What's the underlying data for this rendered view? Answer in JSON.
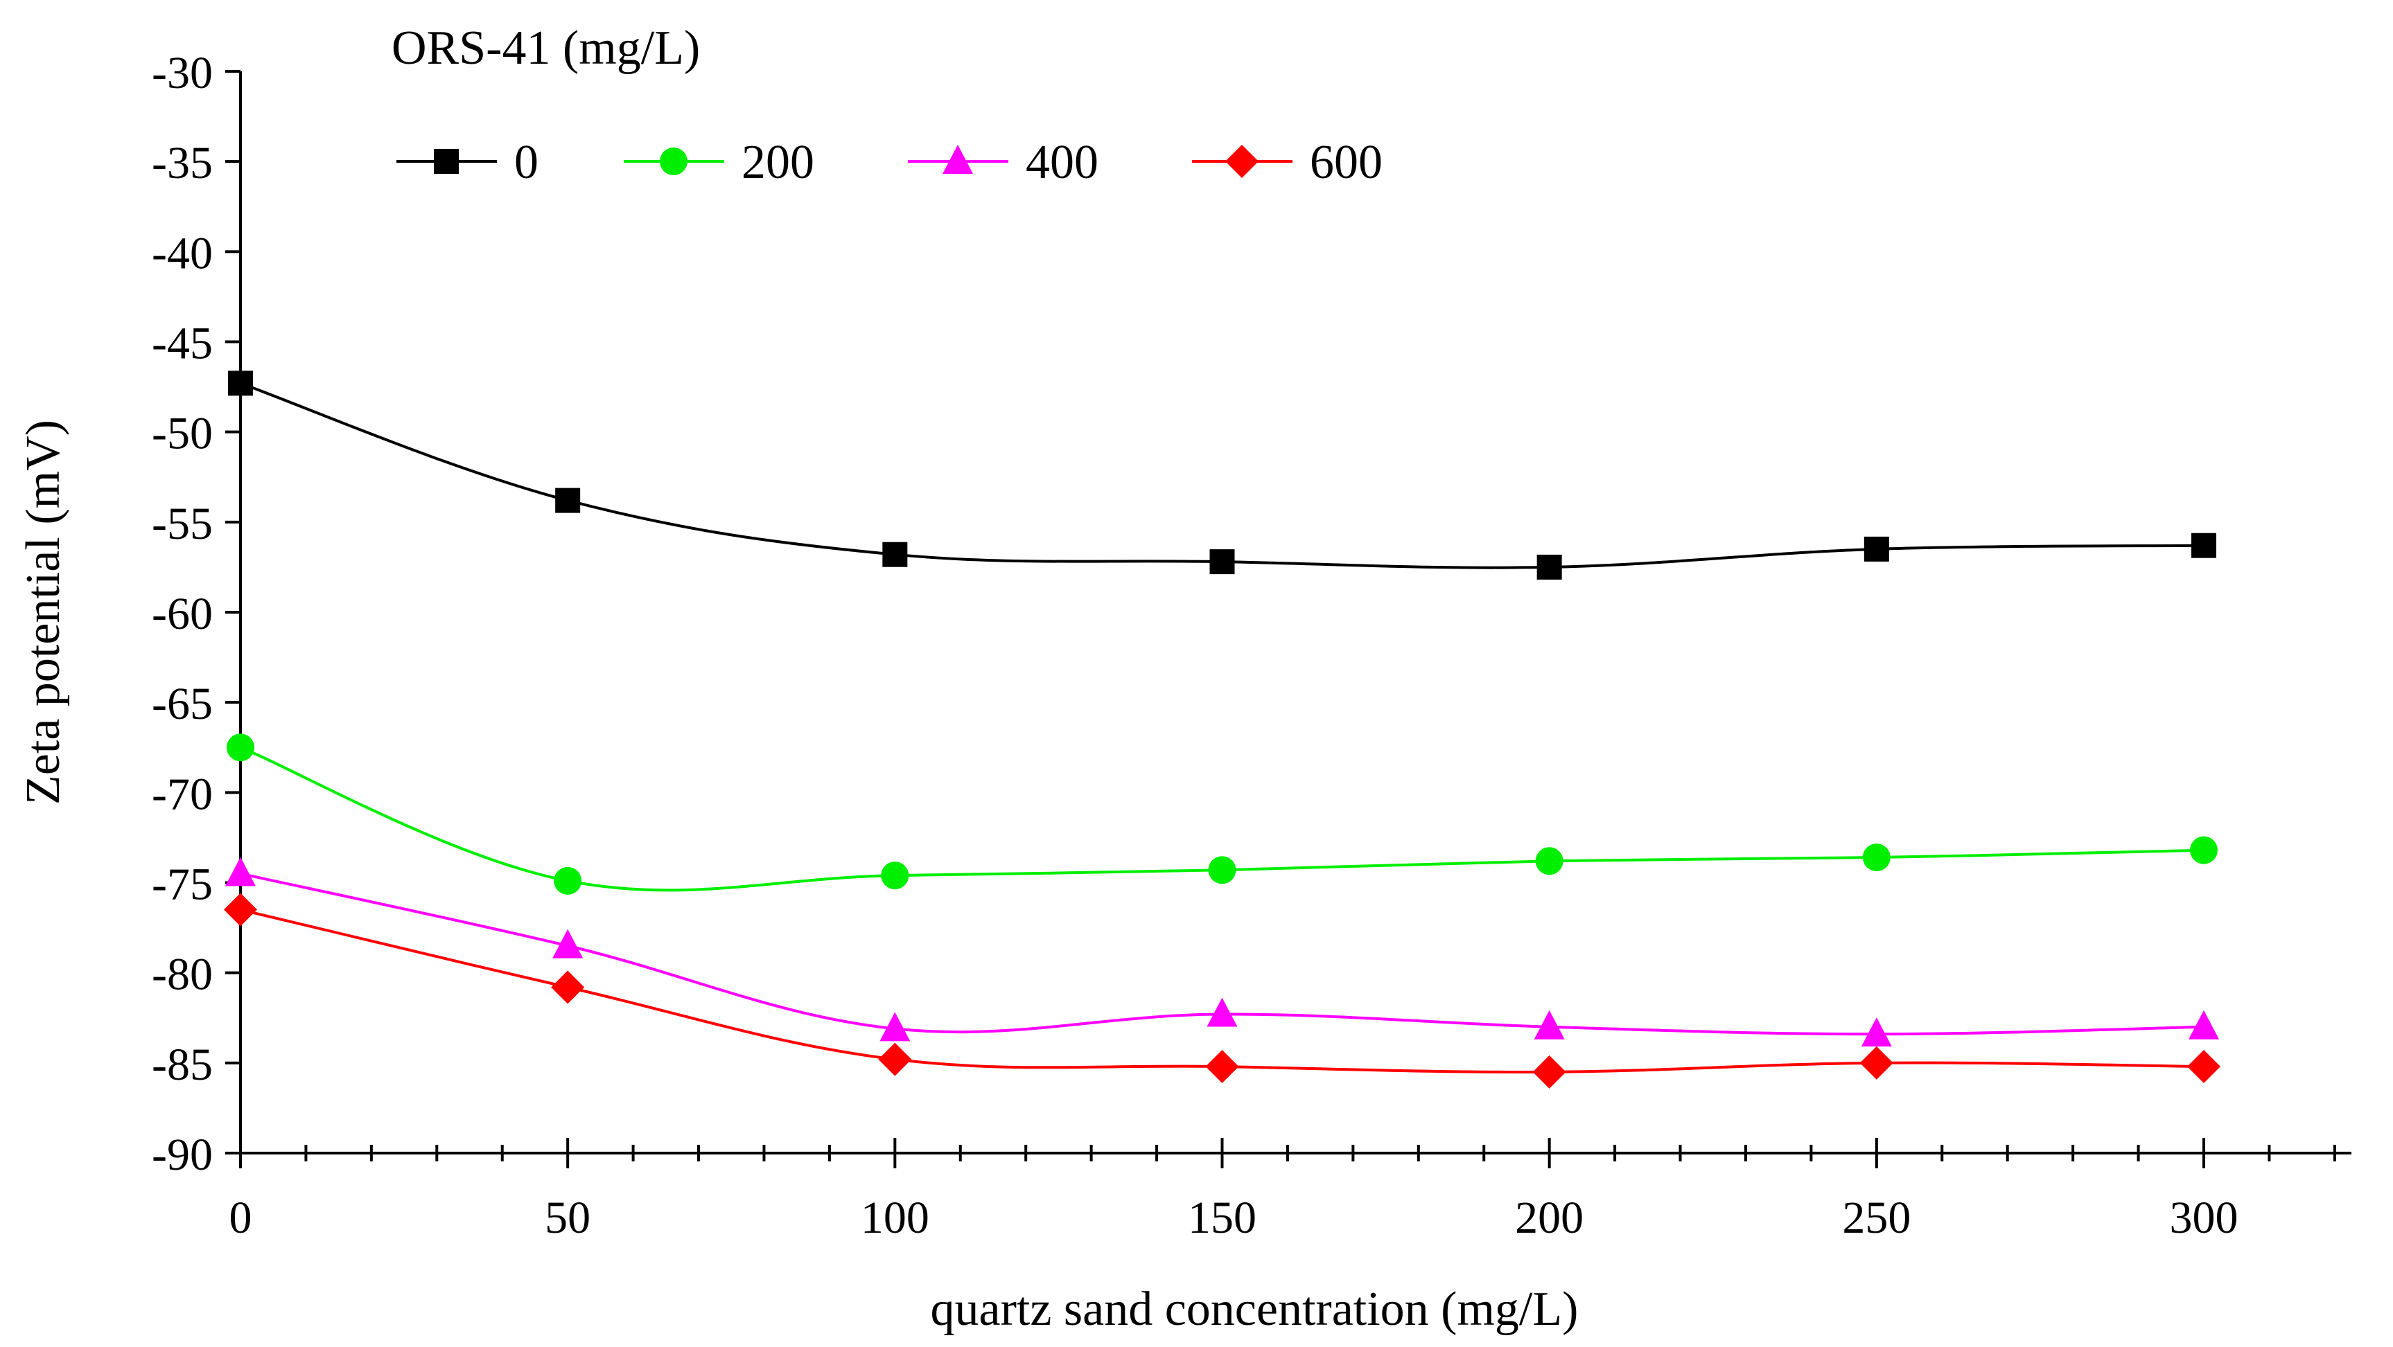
{
  "chart_data": {
    "type": "line",
    "title": "",
    "legend_title": "ORS-41 (mg/L)",
    "legend_position": "top-left",
    "xlabel": "quartz sand concentration (mg/L)",
    "ylabel": "Zeta potential (mV)",
    "x": [
      0,
      50,
      100,
      150,
      200,
      250,
      300
    ],
    "xlim": [
      0,
      320
    ],
    "ylim": [
      -90,
      -30
    ],
    "x_ticks": [
      "0",
      "50",
      "100",
      "150",
      "200",
      "250",
      "300"
    ],
    "y_ticks": [
      "-30",
      "-35",
      "-40",
      "-45",
      "-50",
      "-55",
      "-60",
      "-65",
      "-70",
      "-75",
      "-80",
      "-85",
      "-90"
    ],
    "grid": false,
    "series": [
      {
        "name": "0",
        "color": "#000000",
        "marker": "square",
        "values": [
          -47.3,
          -53.8,
          -56.8,
          -57.2,
          -57.5,
          -56.5,
          -56.3
        ]
      },
      {
        "name": "200",
        "color": "#00ee00",
        "marker": "circle",
        "values": [
          -67.5,
          -74.9,
          -74.6,
          -74.3,
          -73.8,
          -73.6,
          -73.2
        ]
      },
      {
        "name": "400",
        "color": "#ff00ff",
        "marker": "triangle",
        "values": [
          -74.5,
          -78.5,
          -83.1,
          -82.3,
          -83.0,
          -83.4,
          -83.0
        ]
      },
      {
        "name": "600",
        "color": "#ff0000",
        "marker": "diamond",
        "values": [
          -76.5,
          -80.8,
          -84.8,
          -85.2,
          -85.5,
          -85.0,
          -85.2
        ]
      }
    ]
  }
}
